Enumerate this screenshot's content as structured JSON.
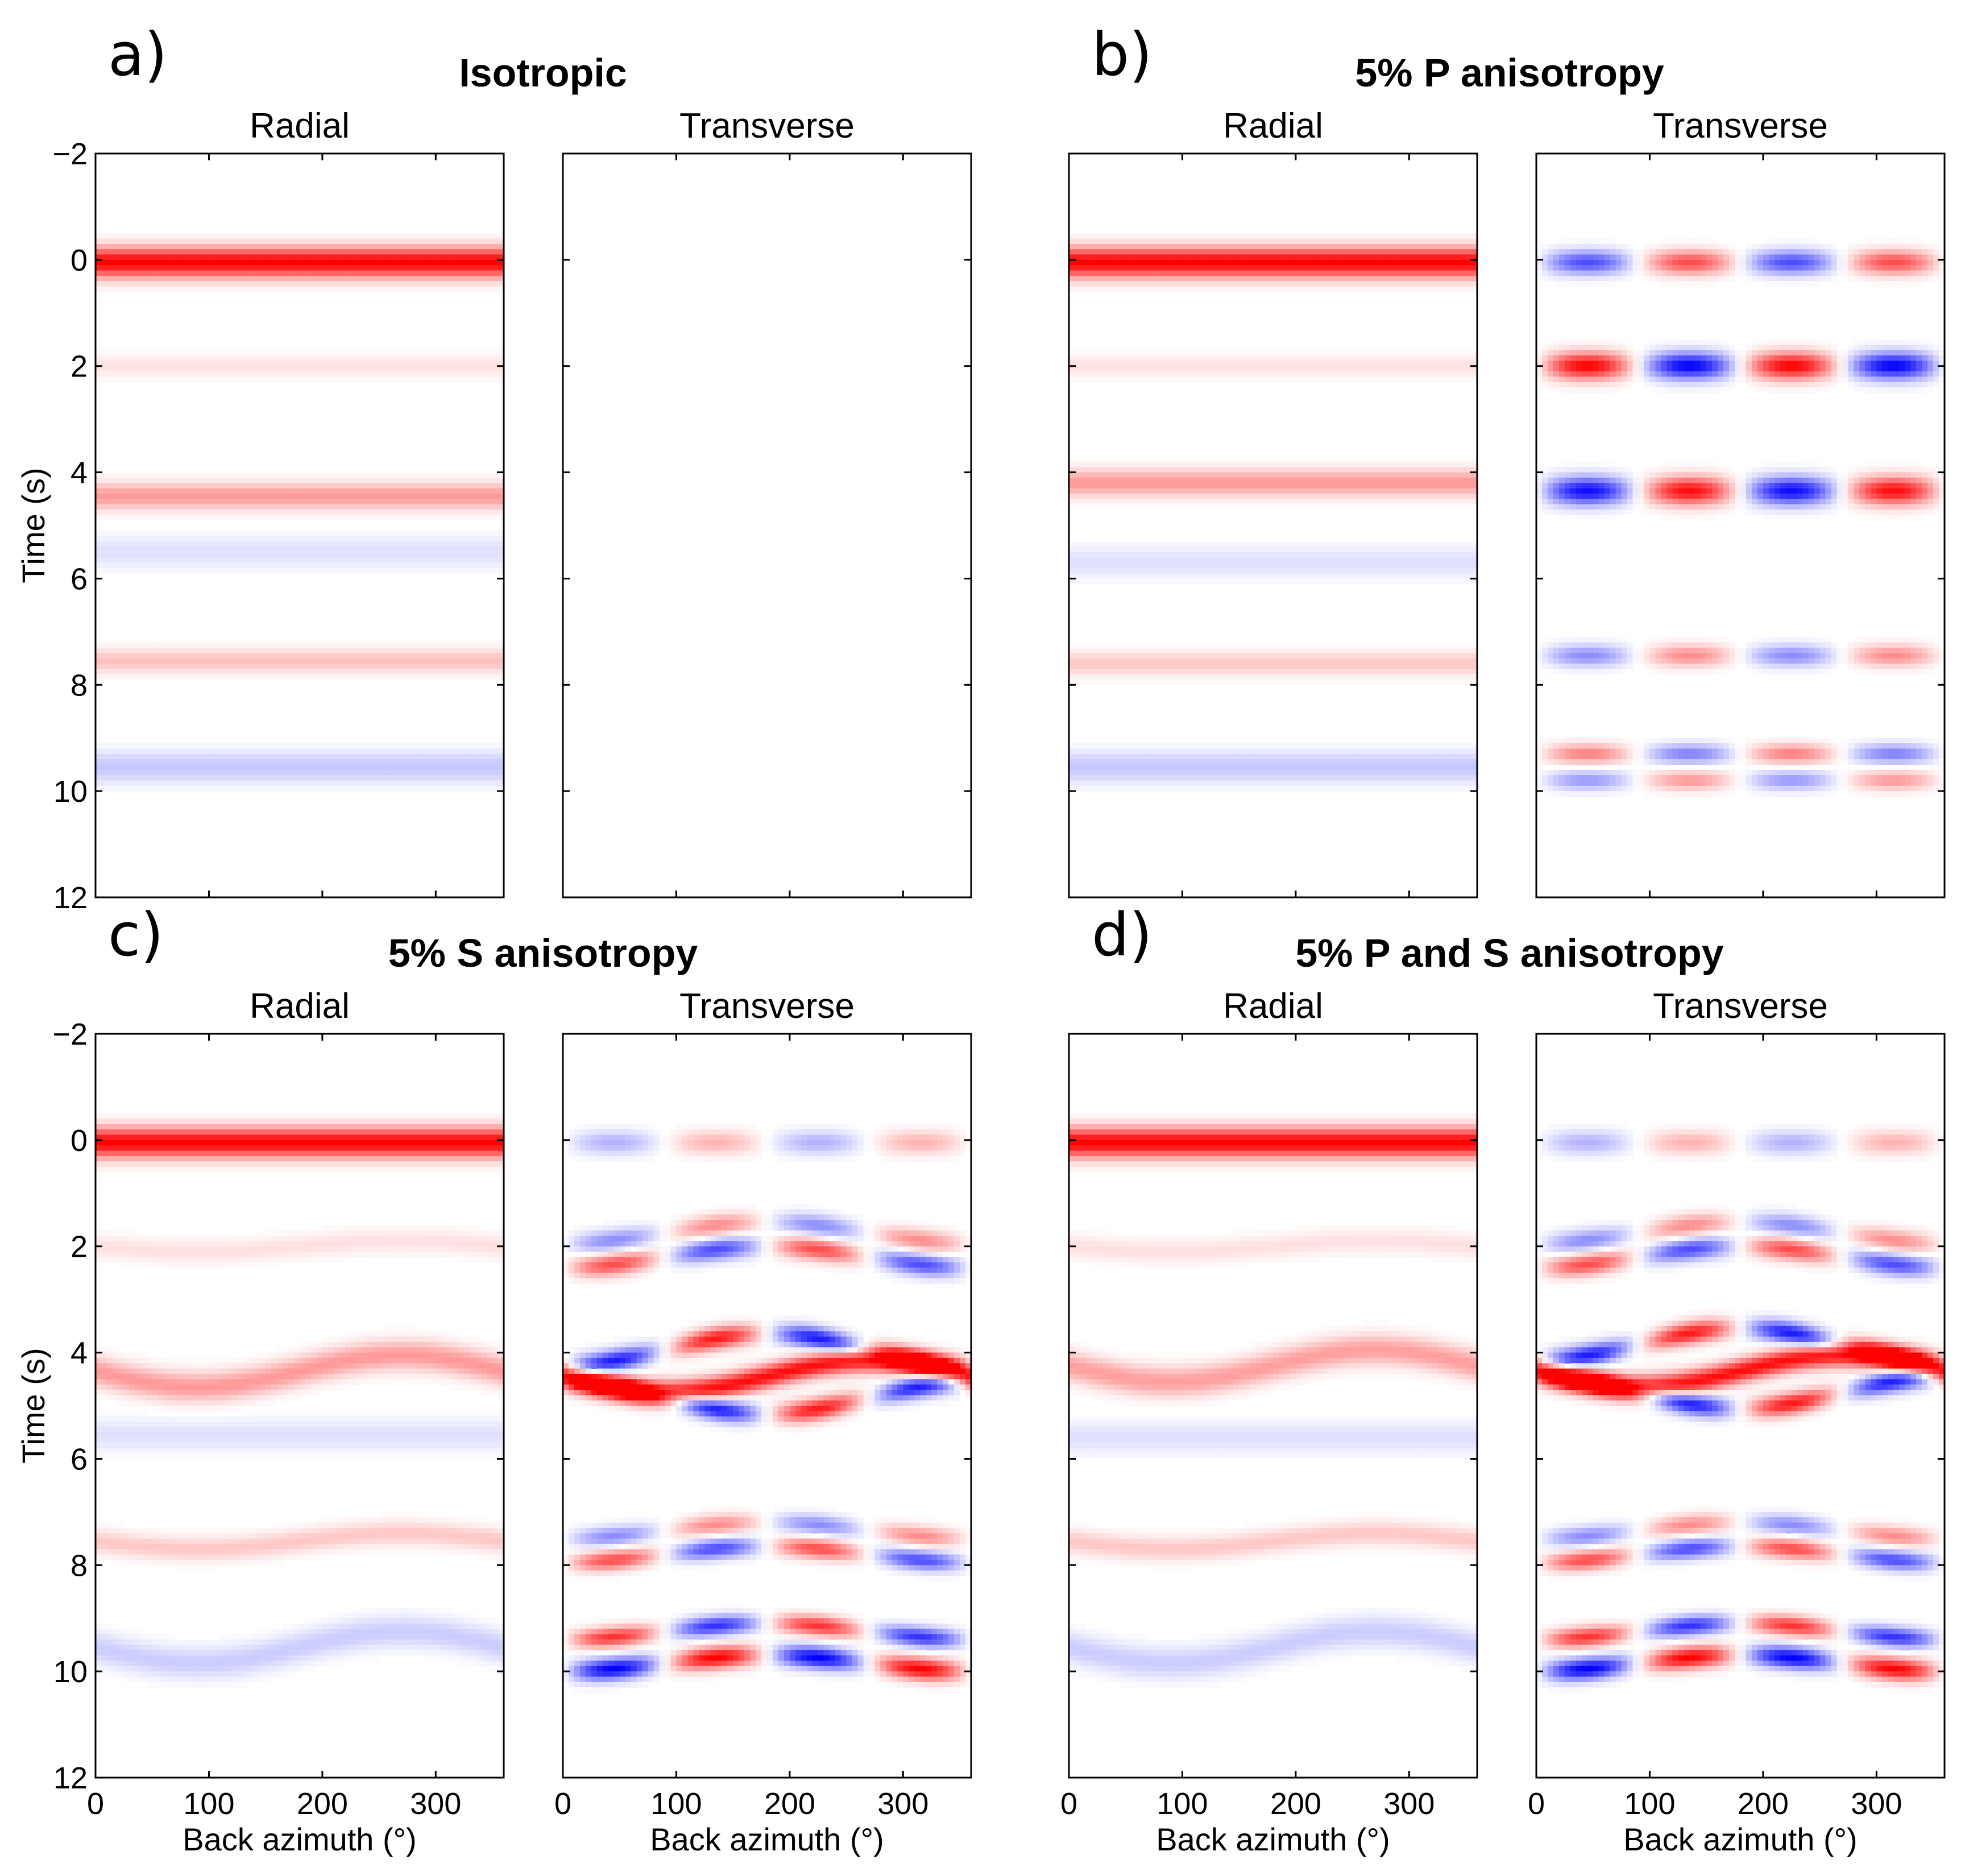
{
  "chart_data": {
    "type": "heatmap",
    "colorscale": {
      "negative": "#0000ff",
      "zero": "#ffffff",
      "positive": "#ff0000"
    },
    "x_ticks": [
      0,
      100,
      200,
      300
    ],
    "xlim": [
      0,
      360
    ],
    "y_ticks": [
      -2,
      0,
      2,
      4,
      6,
      8,
      10,
      12
    ],
    "ylim": [
      -2,
      12
    ],
    "y_reversed": true,
    "xlabel": "Back azimuth (°)",
    "ylabel": "Time (s)",
    "panels": [
      {
        "letter": "a)",
        "title": "Isotropic",
        "components": [
          {
            "name": "Radial",
            "arrivals": [
              {
                "t": 0.05,
                "amp": 1.0,
                "w": 0.28,
                "sin1": 0,
                "cos1": 0,
                "sin2": 0
              },
              {
                "t": 2.0,
                "amp": 0.12,
                "w": 0.2,
                "sin1": 0,
                "cos1": 0,
                "sin2": 0
              },
              {
                "t": 4.45,
                "amp": 0.4,
                "w": 0.25,
                "sin1": 0,
                "cos1": 0,
                "sin2": 0
              },
              {
                "t": 5.5,
                "amp": -0.12,
                "w": 0.3,
                "sin1": 0,
                "cos1": 0,
                "sin2": 0
              },
              {
                "t": 7.55,
                "amp": 0.25,
                "w": 0.22,
                "sin1": 0,
                "cos1": 0,
                "sin2": 0
              },
              {
                "t": 9.55,
                "amp": -0.22,
                "w": 0.3,
                "sin1": 0,
                "cos1": 0,
                "sin2": 0
              }
            ]
          },
          {
            "name": "Transverse",
            "arrivals": []
          }
        ]
      },
      {
        "letter": "b)",
        "title": "5% P anisotropy",
        "components": [
          {
            "name": "Radial",
            "arrivals": [
              {
                "t": 0.05,
                "amp": 1.0,
                "w": 0.28,
                "sin1": 0,
                "cos1": 0,
                "sin2": 0
              },
              {
                "t": 2.0,
                "amp": 0.12,
                "w": 0.2,
                "sin1": 0,
                "cos1": 0,
                "sin2": 0
              },
              {
                "t": 4.2,
                "amp": 0.4,
                "w": 0.25,
                "sin1": 0,
                "cos1": 0,
                "sin2": 0
              },
              {
                "t": 5.7,
                "amp": -0.12,
                "w": 0.3,
                "sin1": 0,
                "cos1": 0,
                "sin2": 0
              },
              {
                "t": 7.6,
                "amp": 0.22,
                "w": 0.22,
                "sin1": 0,
                "cos1": 0,
                "sin2": 0
              },
              {
                "t": 9.55,
                "amp": -0.22,
                "w": 0.3,
                "sin1": 0,
                "cos1": 0,
                "sin2": 0
              }
            ]
          },
          {
            "name": "Transverse",
            "arrivals": [
              {
                "t": 0.05,
                "amp": -0.7,
                "w": 0.22,
                "sin1": 0,
                "cos1": 0,
                "sin2": 1
              },
              {
                "t": 2.0,
                "amp": 1.0,
                "w": 0.25,
                "sin1": 0,
                "cos1": 0,
                "sin2": 1
              },
              {
                "t": 4.35,
                "amp": -0.95,
                "w": 0.26,
                "sin1": 0,
                "cos1": 0,
                "sin2": 1
              },
              {
                "t": 7.45,
                "amp": -0.45,
                "w": 0.2,
                "sin1": 0,
                "cos1": 0,
                "sin2": 1
              },
              {
                "t": 9.3,
                "amp": 0.5,
                "w": 0.18,
                "sin1": 0,
                "cos1": 0,
                "sin2": 1
              },
              {
                "t": 9.8,
                "amp": -0.4,
                "w": 0.18,
                "sin1": 0,
                "cos1": 0,
                "sin2": 1
              }
            ]
          }
        ]
      },
      {
        "letter": "c)",
        "title": "5% S anisotropy",
        "components": [
          {
            "name": "Radial",
            "arrivals": [
              {
                "t": 0.05,
                "amp": 1.0,
                "w": 0.28,
                "sin1": 0,
                "cos1": 0,
                "sin2": 0
              },
              {
                "t": 2.0,
                "amp": 0.12,
                "w": 0.22,
                "sin1": 0.1,
                "cos1": 0,
                "sin2": 0
              },
              {
                "t": 4.35,
                "amp": 0.4,
                "w": 0.28,
                "sin1": 0.3,
                "cos1": 0,
                "sin2": 0
              },
              {
                "t": 5.55,
                "amp": -0.12,
                "w": 0.3,
                "sin1": 0,
                "cos1": 0,
                "sin2": 0
              },
              {
                "t": 7.55,
                "amp": 0.22,
                "w": 0.22,
                "sin1": 0.15,
                "cos1": 0,
                "sin2": 0
              },
              {
                "t": 9.55,
                "amp": -0.2,
                "w": 0.3,
                "sin1": 0.3,
                "cos1": 0,
                "sin2": 0
              }
            ]
          },
          {
            "name": "Transverse",
            "arrivals": [
              {
                "t": 0.05,
                "amp": -0.3,
                "w": 0.22,
                "sin1": 0,
                "cos1": 0,
                "sin2": 1
              },
              {
                "t": 1.75,
                "amp": -0.45,
                "w": 0.2,
                "sin1": 0,
                "cos1": 0.2,
                "sin2": 1
              },
              {
                "t": 2.2,
                "amp": 0.7,
                "w": 0.2,
                "sin1": 0,
                "cos1": 0.2,
                "sin2": 1
              },
              {
                "t": 3.95,
                "amp": -0.9,
                "w": 0.2,
                "sin1": 0,
                "cos1": 0.3,
                "sin2": 1
              },
              {
                "t": 4.45,
                "amp": 0.95,
                "w": 0.22,
                "sin1": 0.3,
                "cos1": 0,
                "sin2": 0
              },
              {
                "t": 4.85,
                "amp": 0.9,
                "w": 0.2,
                "sin1": 0,
                "cos1": -0.3,
                "sin2": 1
              },
              {
                "t": 7.35,
                "amp": -0.45,
                "w": 0.18,
                "sin1": 0,
                "cos1": 0.15,
                "sin2": 1
              },
              {
                "t": 7.8,
                "amp": 0.7,
                "w": 0.18,
                "sin1": 0,
                "cos1": 0.15,
                "sin2": 1
              },
              {
                "t": 9.25,
                "amp": 0.8,
                "w": 0.18,
                "sin1": 0,
                "cos1": 0.15,
                "sin2": 1
              },
              {
                "t": 9.85,
                "amp": -1.0,
                "w": 0.2,
                "sin1": 0,
                "cos1": 0.15,
                "sin2": 1
              }
            ]
          }
        ]
      },
      {
        "letter": "d)",
        "title": "5% P and S anisotropy",
        "components": [
          {
            "name": "Radial",
            "arrivals": [
              {
                "t": 0.05,
                "amp": 1.0,
                "w": 0.28,
                "sin1": 0,
                "cos1": 0,
                "sin2": 0
              },
              {
                "t": 2.0,
                "amp": 0.12,
                "w": 0.22,
                "sin1": 0.1,
                "cos1": 0,
                "sin2": 0
              },
              {
                "t": 4.25,
                "amp": 0.38,
                "w": 0.28,
                "sin1": 0.3,
                "cos1": 0,
                "sin2": 0
              },
              {
                "t": 5.6,
                "amp": -0.12,
                "w": 0.3,
                "sin1": 0,
                "cos1": 0,
                "sin2": 0
              },
              {
                "t": 7.55,
                "amp": 0.22,
                "w": 0.22,
                "sin1": 0.15,
                "cos1": 0,
                "sin2": 0
              },
              {
                "t": 9.55,
                "amp": -0.2,
                "w": 0.3,
                "sin1": 0.3,
                "cos1": 0,
                "sin2": 0
              }
            ]
          },
          {
            "name": "Transverse",
            "arrivals": [
              {
                "t": 0.05,
                "amp": -0.3,
                "w": 0.22,
                "sin1": 0,
                "cos1": 0,
                "sin2": 1
              },
              {
                "t": 1.75,
                "amp": -0.45,
                "w": 0.2,
                "sin1": 0,
                "cos1": 0.2,
                "sin2": 1
              },
              {
                "t": 2.2,
                "amp": 0.7,
                "w": 0.2,
                "sin1": 0,
                "cos1": 0.2,
                "sin2": 1
              },
              {
                "t": 3.85,
                "amp": -0.9,
                "w": 0.2,
                "sin1": 0,
                "cos1": 0.3,
                "sin2": 1
              },
              {
                "t": 4.35,
                "amp": 0.95,
                "w": 0.22,
                "sin1": 0.3,
                "cos1": 0,
                "sin2": 0
              },
              {
                "t": 4.75,
                "amp": 0.9,
                "w": 0.2,
                "sin1": 0,
                "cos1": -0.3,
                "sin2": 1
              },
              {
                "t": 7.35,
                "amp": -0.45,
                "w": 0.18,
                "sin1": 0,
                "cos1": 0.15,
                "sin2": 1
              },
              {
                "t": 7.8,
                "amp": 0.7,
                "w": 0.18,
                "sin1": 0,
                "cos1": 0.15,
                "sin2": 1
              },
              {
                "t": 9.25,
                "amp": 0.8,
                "w": 0.18,
                "sin1": 0,
                "cos1": 0.15,
                "sin2": 1
              },
              {
                "t": 9.85,
                "amp": -1.0,
                "w": 0.2,
                "sin1": 0,
                "cos1": 0.15,
                "sin2": 1
              }
            ]
          }
        ]
      }
    ]
  }
}
